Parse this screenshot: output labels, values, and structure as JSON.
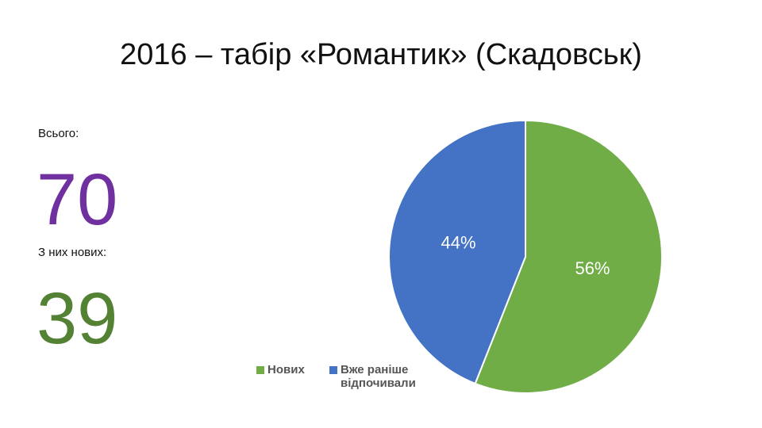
{
  "title": "2016 – табір «Романтик» (Скадовськ)",
  "stats": [
    {
      "label": "Всього:",
      "value": 70,
      "color": "#7030a0"
    },
    {
      "label": "З них нових:",
      "value": 39,
      "color": "#548235"
    }
  ],
  "chart_data": {
    "type": "pie",
    "categories": [
      "Нових",
      "Вже раніше відпочивали"
    ],
    "values": [
      56,
      44
    ],
    "value_labels": [
      "56%",
      "44%"
    ],
    "colors": [
      "#70ad47",
      "#4472c4"
    ],
    "legend": "bottom"
  }
}
